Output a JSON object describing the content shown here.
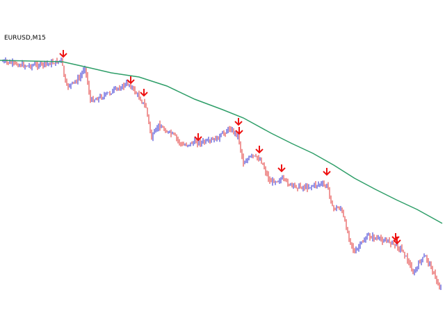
{
  "chart_data": {
    "type": "line",
    "title": "EURUSD,M15",
    "xlabel": "",
    "ylabel": "",
    "grid": false,
    "ylim": [
      0,
      480
    ],
    "colors": {
      "bull": "#2a2ad0",
      "bear": "#e03030",
      "ma": "#2e9e68",
      "arrow": "#ee1111"
    },
    "price_path": [
      [
        0,
        88
      ],
      [
        20,
        92
      ],
      [
        40,
        95
      ],
      [
        60,
        93
      ],
      [
        80,
        90
      ],
      [
        88,
        86
      ],
      [
        95,
        125
      ],
      [
        105,
        120
      ],
      [
        115,
        112
      ],
      [
        122,
        95
      ],
      [
        130,
        145
      ],
      [
        145,
        140
      ],
      [
        165,
        130
      ],
      [
        185,
        120
      ],
      [
        200,
        140
      ],
      [
        210,
        155
      ],
      [
        218,
        200
      ],
      [
        228,
        180
      ],
      [
        240,
        190
      ],
      [
        250,
        195
      ],
      [
        262,
        210
      ],
      [
        280,
        205
      ],
      [
        300,
        205
      ],
      [
        315,
        198
      ],
      [
        330,
        185
      ],
      [
        342,
        195
      ],
      [
        350,
        235
      ],
      [
        362,
        225
      ],
      [
        375,
        230
      ],
      [
        388,
        262
      ],
      [
        405,
        258
      ],
      [
        420,
        268
      ],
      [
        440,
        270
      ],
      [
        460,
        265
      ],
      [
        472,
        270
      ],
      [
        478,
        300
      ],
      [
        490,
        300
      ],
      [
        500,
        335
      ],
      [
        510,
        365
      ],
      [
        520,
        350
      ],
      [
        530,
        340
      ],
      [
        545,
        345
      ],
      [
        560,
        348
      ],
      [
        572,
        355
      ],
      [
        580,
        362
      ],
      [
        595,
        395
      ],
      [
        605,
        375
      ],
      [
        612,
        370
      ],
      [
        620,
        385
      ],
      [
        632,
        415
      ]
    ],
    "moving_average": [
      [
        0,
        87
      ],
      [
        90,
        89
      ],
      [
        130,
        98
      ],
      [
        160,
        105
      ],
      [
        200,
        111
      ],
      [
        240,
        124
      ],
      [
        280,
        143
      ],
      [
        320,
        158
      ],
      [
        350,
        170
      ],
      [
        390,
        192
      ],
      [
        420,
        207
      ],
      [
        450,
        221
      ],
      [
        480,
        238
      ],
      [
        510,
        257
      ],
      [
        540,
        273
      ],
      [
        570,
        288
      ],
      [
        600,
        302
      ],
      [
        636,
        322
      ]
    ],
    "sell_arrows": [
      [
        91,
        82
      ],
      [
        188,
        120
      ],
      [
        207,
        138
      ],
      [
        285,
        202
      ],
      [
        343,
        180
      ],
      [
        344,
        193
      ],
      [
        373,
        220
      ],
      [
        405,
        247
      ],
      [
        470,
        252
      ],
      [
        569,
        346
      ],
      [
        571,
        351
      ]
    ]
  }
}
